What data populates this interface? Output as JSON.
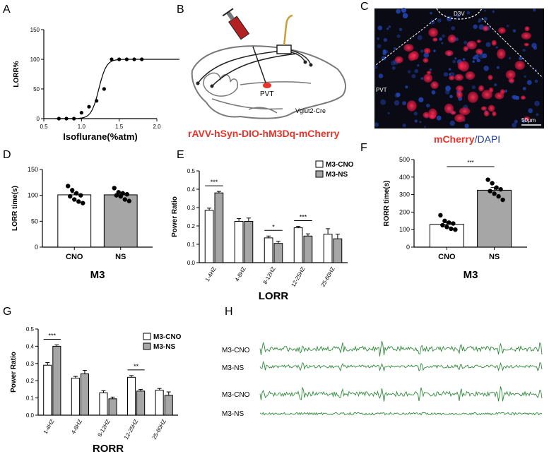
{
  "panel_letters": {
    "a": "A",
    "b": "B",
    "c": "C",
    "d": "D",
    "e": "E",
    "f": "F",
    "g": "G",
    "h": "H"
  },
  "panel_b": {
    "region_label": "PVT",
    "mouse_label": "Vglut2-Cre",
    "virus_label": "rAVV-hSyn-DIO-hM3Dq-mCherry",
    "colors": {
      "virus": "#e8332a",
      "syringe": "#b22222",
      "brain": "#7a7a7a",
      "fiber": "#c9a040"
    }
  },
  "panel_c": {
    "d3v_label": "D3V",
    "pvt_label": "PVT",
    "scale_label": "50μm",
    "caption_mcherry": "mCherry",
    "caption_sep": "/",
    "caption_dapi": "DAPI",
    "colors": {
      "mcherry": "#e8332a",
      "dapi": "#1f3f9a",
      "background": "#0a0a14"
    }
  },
  "panel_h": {
    "trace_labels": [
      "M3-CNO",
      "M3-NS",
      "M3-CNO",
      "M3-NS"
    ],
    "trace_color": "#2e8b3a"
  },
  "chart_data": [
    {
      "id": "A",
      "type": "line",
      "xlabel": "Isoflurane(%atm)",
      "ylabel": "LORR%",
      "xlim": [
        0.5,
        2.0
      ],
      "ylim": [
        0,
        150
      ],
      "xticks": [
        "0.5",
        "1.0",
        "1.5",
        "2.0"
      ],
      "yticks": [
        "0",
        "50",
        "100",
        "150"
      ],
      "points": {
        "x": [
          0.7,
          0.8,
          0.9,
          1.0,
          1.1,
          1.2,
          1.3,
          1.4,
          1.5,
          1.6,
          1.7,
          1.8
        ],
        "y": [
          0,
          0,
          0,
          10,
          20,
          30,
          50,
          100,
          100,
          100,
          100,
          100
        ]
      }
    },
    {
      "id": "D",
      "type": "bar",
      "title": "M3",
      "ylabel": "LORR time(s)",
      "ylim": [
        0,
        150
      ],
      "yticks": [
        "0",
        "50",
        "100",
        "150"
      ],
      "categories": [
        "CNO",
        "NS"
      ],
      "values": [
        101,
        101
      ],
      "errors": [
        4,
        3
      ],
      "points": [
        [
          118,
          110,
          104,
          100,
          98,
          92,
          88,
          85
        ],
        [
          114,
          106,
          104,
          102,
          100,
          98,
          92,
          89
        ]
      ],
      "bar_colors": [
        "#ffffff",
        "#a6a6a6"
      ]
    },
    {
      "id": "E",
      "type": "bar",
      "xlabel": "LORR",
      "ylabel": "Power Ratio",
      "ylim": [
        0,
        0.5
      ],
      "yticks": [
        "0.0",
        "0.1",
        "0.2",
        "0.3",
        "0.4",
        "0.5"
      ],
      "categories": [
        "1-4HZ",
        "4-8HZ",
        "8-12HZ",
        "12-25HZ",
        "25-60HZ"
      ],
      "series": [
        {
          "name": "M3-CNO",
          "values": [
            0.285,
            0.225,
            0.135,
            0.19,
            0.155
          ],
          "errors": [
            0.012,
            0.015,
            0.01,
            0.008,
            0.03
          ],
          "color": "#ffffff"
        },
        {
          "name": "M3-NS",
          "values": [
            0.38,
            0.225,
            0.105,
            0.145,
            0.13
          ],
          "errors": [
            0.008,
            0.018,
            0.012,
            0.012,
            0.025
          ],
          "color": "#a6a6a6"
        }
      ],
      "significance": [
        {
          "index": 0,
          "label": "***"
        },
        {
          "index": 2,
          "label": "*"
        },
        {
          "index": 3,
          "label": "***"
        }
      ],
      "legend": "top-right"
    },
    {
      "id": "F",
      "type": "bar",
      "title": "M3",
      "ylabel": "RORR time(s)",
      "ylim": [
        0,
        500
      ],
      "yticks": [
        "0",
        "100",
        "200",
        "300",
        "400",
        "500"
      ],
      "categories": [
        "CNO",
        "NS"
      ],
      "values": [
        130,
        325
      ],
      "errors": [
        10,
        15
      ],
      "points": [
        [
          182,
          150,
          140,
          135,
          125,
          115,
          105,
          100
        ],
        [
          385,
          365,
          340,
          330,
          320,
          305,
          290,
          270
        ]
      ],
      "bar_colors": [
        "#ffffff",
        "#a6a6a6"
      ],
      "significance": [
        {
          "label": "***"
        }
      ]
    },
    {
      "id": "G",
      "type": "bar",
      "xlabel": "RORR",
      "ylabel": "Power Ratio",
      "ylim": [
        0,
        0.5
      ],
      "yticks": [
        "0.0",
        "0.1",
        "0.2",
        "0.3",
        "0.4",
        "0.5"
      ],
      "categories": [
        "1-4HZ",
        "4-8HZ",
        "8-12HZ",
        "12-25HZ",
        "25-60HZ"
      ],
      "series": [
        {
          "name": "M3-CNO",
          "values": [
            0.29,
            0.215,
            0.13,
            0.22,
            0.145
          ],
          "errors": [
            0.015,
            0.01,
            0.012,
            0.01,
            0.01
          ],
          "color": "#ffffff"
        },
        {
          "name": "M3-NS",
          "values": [
            0.4,
            0.24,
            0.095,
            0.14,
            0.115
          ],
          "errors": [
            0.008,
            0.02,
            0.01,
            0.01,
            0.02
          ],
          "color": "#a6a6a6"
        }
      ],
      "significance": [
        {
          "index": 0,
          "label": "***"
        },
        {
          "index": 3,
          "label": "**"
        }
      ],
      "legend": "top-right"
    }
  ]
}
